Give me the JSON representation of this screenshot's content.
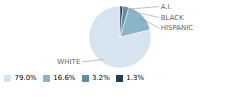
{
  "chart_data": {
    "type": "pie",
    "categories": [
      "WHITE",
      "HISPANIC",
      "BLACK",
      "A.I."
    ],
    "values": [
      79.0,
      16.6,
      3.2,
      1.3
    ],
    "value_labels": [
      "79.0%",
      "16.6%",
      "3.2%",
      "1.3%"
    ],
    "colors": [
      "#d6e4f0",
      "#8ab4c8",
      "#5b8fa8",
      "#1c3d54"
    ],
    "legend": "bottom"
  }
}
